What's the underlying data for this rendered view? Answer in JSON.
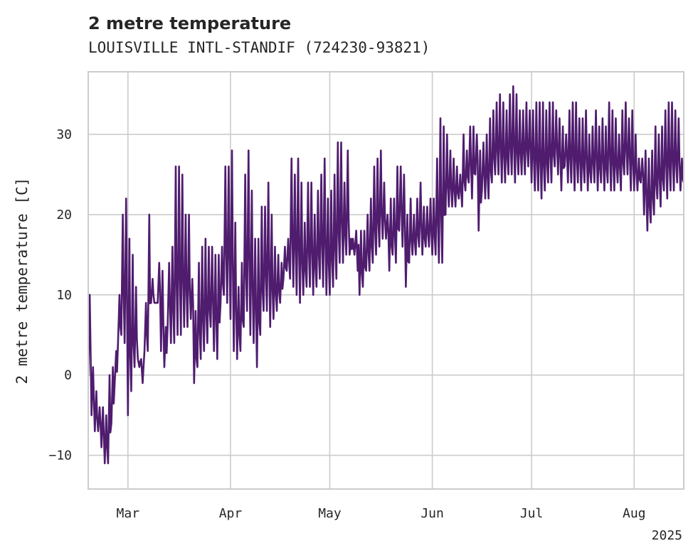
{
  "chart_data": {
    "type": "line",
    "title": "2 metre temperature",
    "subtitle": "LOUISVILLE INTL-STANDIF (724230-93821)",
    "ylabel": "2 metre temperature [C]",
    "xlabel": "",
    "year_label": "2025",
    "xlim": [
      "2025-02-17",
      "2025-08-16"
    ],
    "ylim": [
      -14.2,
      37.8
    ],
    "x_ticks": [
      {
        "date": "2025-03-01",
        "label": "Mar"
      },
      {
        "date": "2025-04-01",
        "label": "Apr"
      },
      {
        "date": "2025-05-01",
        "label": "May"
      },
      {
        "date": "2025-06-01",
        "label": "Jun"
      },
      {
        "date": "2025-07-01",
        "label": "Jul"
      },
      {
        "date": "2025-08-01",
        "label": "Aug"
      }
    ],
    "y_ticks": [
      -10,
      0,
      10,
      20,
      30
    ],
    "grid": true,
    "line_color": "#4f1c6e",
    "series": [
      {
        "x": [
          "2025-02-17",
          "2025-02-18",
          "2025-02-19",
          "2025-02-20",
          "2025-02-21",
          "2025-02-22",
          "2025-02-23",
          "2025-02-24",
          "2025-02-25",
          "2025-02-26",
          "2025-02-27",
          "2025-02-28",
          "2025-03-01",
          "2025-03-02",
          "2025-03-03",
          "2025-03-04",
          "2025-03-05",
          "2025-03-06",
          "2025-03-07",
          "2025-03-08",
          "2025-03-09",
          "2025-03-10",
          "2025-03-11",
          "2025-03-12",
          "2025-03-13",
          "2025-03-14",
          "2025-03-15",
          "2025-03-16",
          "2025-03-17",
          "2025-03-18",
          "2025-03-19",
          "2025-03-20",
          "2025-03-21",
          "2025-03-22",
          "2025-03-23",
          "2025-03-24",
          "2025-03-25",
          "2025-03-26",
          "2025-03-27",
          "2025-03-28",
          "2025-03-29",
          "2025-03-30",
          "2025-03-31",
          "2025-04-01",
          "2025-04-02",
          "2025-04-03",
          "2025-04-04",
          "2025-04-05",
          "2025-04-06",
          "2025-04-07",
          "2025-04-08",
          "2025-04-09",
          "2025-04-10",
          "2025-04-11",
          "2025-04-12",
          "2025-04-13",
          "2025-04-14",
          "2025-04-15",
          "2025-04-16",
          "2025-04-17",
          "2025-04-18",
          "2025-04-19",
          "2025-04-20",
          "2025-04-21",
          "2025-04-22",
          "2025-04-23",
          "2025-04-24",
          "2025-04-25",
          "2025-04-26",
          "2025-04-27",
          "2025-04-28",
          "2025-04-29",
          "2025-04-30",
          "2025-05-01",
          "2025-05-02",
          "2025-05-03",
          "2025-05-04",
          "2025-05-05",
          "2025-05-06",
          "2025-05-07",
          "2025-05-08",
          "2025-05-09",
          "2025-05-10",
          "2025-05-11",
          "2025-05-12",
          "2025-05-13",
          "2025-05-14",
          "2025-05-15",
          "2025-05-16",
          "2025-05-17",
          "2025-05-18",
          "2025-05-19",
          "2025-05-20",
          "2025-05-21",
          "2025-05-22",
          "2025-05-23",
          "2025-05-24",
          "2025-05-25",
          "2025-05-26",
          "2025-05-27",
          "2025-05-28",
          "2025-05-29",
          "2025-05-30",
          "2025-05-31",
          "2025-06-01",
          "2025-06-02",
          "2025-06-03",
          "2025-06-04",
          "2025-06-05",
          "2025-06-06",
          "2025-06-07",
          "2025-06-08",
          "2025-06-09",
          "2025-06-10",
          "2025-06-11",
          "2025-06-12",
          "2025-06-13",
          "2025-06-14",
          "2025-06-15",
          "2025-06-16",
          "2025-06-17",
          "2025-06-18",
          "2025-06-19",
          "2025-06-20",
          "2025-06-21",
          "2025-06-22",
          "2025-06-23",
          "2025-06-24",
          "2025-06-25",
          "2025-06-26",
          "2025-06-27",
          "2025-06-28",
          "2025-06-29",
          "2025-06-30",
          "2025-07-01",
          "2025-07-02",
          "2025-07-03",
          "2025-07-04",
          "2025-07-05",
          "2025-07-06",
          "2025-07-07",
          "2025-07-08",
          "2025-07-09",
          "2025-07-10",
          "2025-07-11",
          "2025-07-12",
          "2025-07-13",
          "2025-07-14",
          "2025-07-15",
          "2025-07-16",
          "2025-07-17",
          "2025-07-18",
          "2025-07-19",
          "2025-07-20",
          "2025-07-21",
          "2025-07-22",
          "2025-07-23",
          "2025-07-24",
          "2025-07-25",
          "2025-07-26",
          "2025-07-27",
          "2025-07-28",
          "2025-07-29",
          "2025-07-30",
          "2025-07-31",
          "2025-08-01",
          "2025-08-02",
          "2025-08-03",
          "2025-08-04",
          "2025-08-05",
          "2025-08-06",
          "2025-08-07",
          "2025-08-08",
          "2025-08-09",
          "2025-08-10",
          "2025-08-11",
          "2025-08-12",
          "2025-08-13",
          "2025-08-14",
          "2025-08-15",
          "2025-08-16"
        ],
        "min": [
          0,
          -5,
          -7,
          -7,
          -9,
          -11,
          -11,
          -6,
          -1,
          4,
          5,
          4,
          -5,
          -2,
          1,
          2,
          2,
          3,
          3,
          9,
          9,
          9,
          3,
          1,
          6,
          4,
          4,
          5,
          5,
          6,
          6,
          7,
          -1,
          1,
          2,
          3,
          4,
          6,
          3,
          2,
          9,
          10,
          9,
          7,
          3,
          2,
          3,
          6,
          8,
          5,
          4,
          1,
          5,
          8,
          8,
          6,
          7,
          8,
          9,
          12,
          13,
          12,
          11,
          10,
          9,
          10,
          11,
          11,
          10,
          11,
          12,
          11,
          10,
          10,
          11,
          12,
          14,
          14,
          15,
          15,
          17,
          18,
          10,
          11,
          13,
          13,
          14,
          15,
          16,
          17,
          17,
          13,
          15,
          14,
          18,
          16,
          11,
          14,
          15,
          15,
          16,
          15,
          16,
          16,
          15,
          15,
          14,
          14,
          20,
          21,
          21,
          21,
          22,
          21,
          23,
          24,
          22,
          25,
          18,
          23,
          22,
          22,
          24,
          25,
          25,
          24,
          24,
          25,
          25,
          24,
          25,
          25,
          25,
          26,
          24,
          23,
          23,
          22,
          23,
          24,
          24,
          26,
          25,
          23,
          26,
          24,
          24,
          23,
          24,
          23,
          24,
          23,
          24,
          24,
          23,
          24,
          23,
          24,
          23,
          23,
          24,
          23,
          25,
          25,
          23,
          23,
          23,
          24,
          20,
          18,
          19,
          20,
          22,
          21,
          23,
          22,
          23,
          23,
          24,
          23,
          24,
          23,
          24
        ],
        "max": [
          10,
          1,
          -2,
          -4,
          -4,
          -5,
          0,
          1,
          3,
          10,
          20,
          22,
          17,
          15,
          11,
          1,
          -1,
          9,
          20,
          12,
          9,
          14,
          13,
          6,
          14,
          16,
          26,
          26,
          25,
          20,
          20,
          12,
          8,
          14,
          16,
          17,
          16,
          16,
          15,
          15,
          16,
          26,
          26,
          28,
          19,
          11,
          14,
          25,
          28,
          23,
          17,
          17,
          21,
          21,
          24,
          20,
          16,
          15,
          14,
          16,
          17,
          27,
          25,
          27,
          24,
          19,
          24,
          24,
          20,
          23,
          25,
          27,
          22,
          23,
          25,
          29,
          29,
          24,
          28,
          17,
          15,
          13,
          18,
          18,
          20,
          22,
          26,
          27,
          28,
          24,
          20,
          22,
          22,
          26,
          26,
          25,
          20,
          22,
          20,
          22,
          24,
          21,
          21,
          22,
          22,
          27,
          32,
          31,
          30,
          28,
          27,
          26,
          25,
          30,
          28,
          31,
          31,
          30,
          28,
          29,
          30,
          32,
          33,
          34,
          35,
          34,
          33,
          35,
          36,
          35,
          33,
          33,
          34,
          33,
          33,
          34,
          34,
          34,
          33,
          34,
          34,
          33,
          32,
          31,
          30,
          33,
          34,
          34,
          32,
          32,
          33,
          30,
          31,
          33,
          31,
          32,
          31,
          34,
          33,
          32,
          30,
          33,
          34,
          32,
          33,
          30,
          27,
          27,
          28,
          27,
          28,
          31,
          30,
          31,
          33,
          34,
          34,
          33,
          32,
          27
        ]
      }
    ]
  }
}
